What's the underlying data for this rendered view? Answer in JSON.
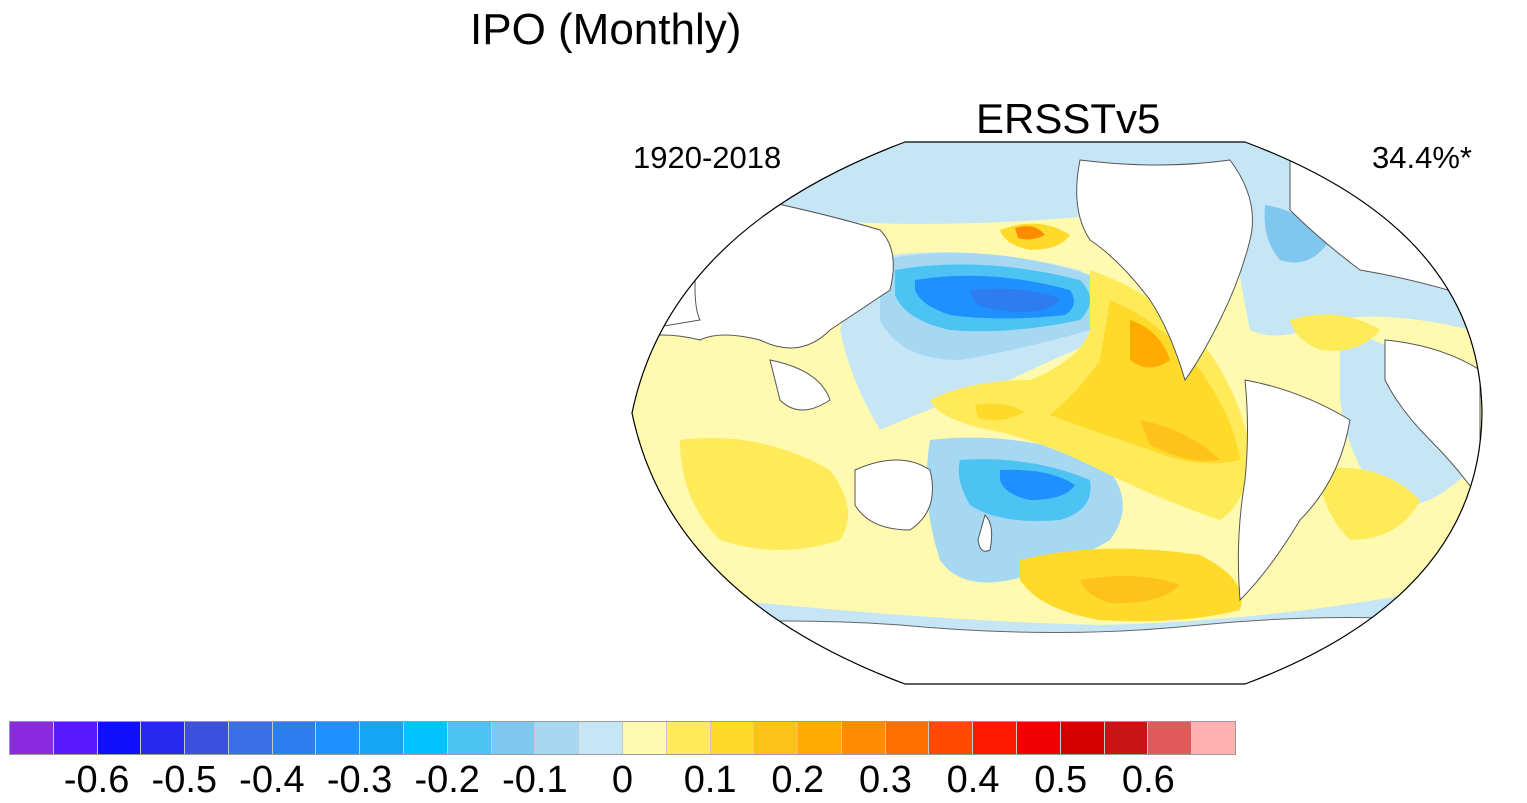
{
  "figure": {
    "title": "IPO (Monthly)",
    "dataset": "ERSSTv5",
    "period": "1920-2018",
    "variance_explained": "34.4%*"
  },
  "map": {
    "projection": "Robinson",
    "central_longitude": "Pacific-centred",
    "field": "sea surface temperature regression pattern"
  },
  "colorbar": {
    "colors": [
      "#8a2be2",
      "#5a1aff",
      "#1010ff",
      "#2828f0",
      "#3c50e0",
      "#3c6ee8",
      "#2d7cf0",
      "#1e90ff",
      "#14a5f5",
      "#00c3ff",
      "#4cc3f2",
      "#7fc7ef",
      "#a6d8f2",
      "#c6e6f6",
      "#fffab0",
      "#ffeb5a",
      "#ffda2a",
      "#ffc21a",
      "#ffab00",
      "#ff8c00",
      "#ff7000",
      "#ff4a00",
      "#ff1a00",
      "#f00000",
      "#d60000",
      "#c81414",
      "#e05a5a",
      "#ffb0b0"
    ],
    "tick_labels": [
      "-0.6",
      "-0.5",
      "-0.4",
      "-0.3",
      "-0.2",
      "-0.1",
      "0",
      "0.1",
      "0.2",
      "0.3",
      "0.4",
      "0.5",
      "0.6"
    ],
    "tick_positions": [
      -0.6,
      -0.5,
      -0.4,
      -0.3,
      -0.2,
      -0.1,
      0,
      0.1,
      0.2,
      0.3,
      0.4,
      0.5,
      0.6
    ],
    "range": [
      -0.7,
      0.7
    ]
  }
}
